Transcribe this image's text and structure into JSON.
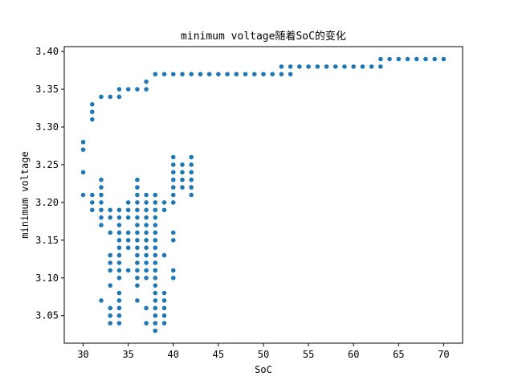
{
  "chart_data": {
    "type": "scatter",
    "title": "minimum voltage随着SoC的变化",
    "xlabel": "SoC",
    "ylabel": "minimum voltage",
    "xlim": [
      27.9,
      72.1
    ],
    "ylim": [
      3.0135,
      3.4065
    ],
    "xticks": [
      "30",
      "35",
      "40",
      "45",
      "50",
      "55",
      "60",
      "65",
      "70"
    ],
    "yticks": [
      "3.05",
      "3.10",
      "3.15",
      "3.20",
      "3.25",
      "3.30",
      "3.35",
      "3.40"
    ],
    "grid": false,
    "marker_color": "#1f77b4",
    "points": [
      [
        30,
        3.28
      ],
      [
        30,
        3.27
      ],
      [
        30,
        3.24
      ],
      [
        30,
        3.21
      ],
      [
        31,
        3.33
      ],
      [
        31,
        3.32
      ],
      [
        31,
        3.31
      ],
      [
        31,
        3.21
      ],
      [
        31,
        3.2
      ],
      [
        31,
        3.19
      ],
      [
        32,
        3.34
      ],
      [
        32,
        3.23
      ],
      [
        32,
        3.22
      ],
      [
        32,
        3.21
      ],
      [
        32,
        3.2
      ],
      [
        32,
        3.19
      ],
      [
        32,
        3.18
      ],
      [
        32,
        3.17
      ],
      [
        32,
        3.07
      ],
      [
        33,
        3.34
      ],
      [
        33,
        3.19
      ],
      [
        33,
        3.18
      ],
      [
        33,
        3.16
      ],
      [
        33,
        3.13
      ],
      [
        33,
        3.12
      ],
      [
        33,
        3.11
      ],
      [
        33,
        3.09
      ],
      [
        33,
        3.06
      ],
      [
        33,
        3.05
      ],
      [
        33,
        3.04
      ],
      [
        34,
        3.35
      ],
      [
        34,
        3.34
      ],
      [
        34,
        3.19
      ],
      [
        34,
        3.18
      ],
      [
        34,
        3.17
      ],
      [
        34,
        3.16
      ],
      [
        34,
        3.15
      ],
      [
        34,
        3.14
      ],
      [
        34,
        3.13
      ],
      [
        34,
        3.12
      ],
      [
        34,
        3.11
      ],
      [
        34,
        3.1
      ],
      [
        34,
        3.08
      ],
      [
        34,
        3.07
      ],
      [
        34,
        3.06
      ],
      [
        34,
        3.05
      ],
      [
        34,
        3.04
      ],
      [
        35,
        3.35
      ],
      [
        35,
        3.2
      ],
      [
        35,
        3.19
      ],
      [
        35,
        3.18
      ],
      [
        35,
        3.16
      ],
      [
        35,
        3.15
      ],
      [
        35,
        3.14
      ],
      [
        35,
        3.11
      ],
      [
        36,
        3.35
      ],
      [
        36,
        3.23
      ],
      [
        36,
        3.22
      ],
      [
        36,
        3.21
      ],
      [
        36,
        3.2
      ],
      [
        36,
        3.19
      ],
      [
        36,
        3.18
      ],
      [
        36,
        3.17
      ],
      [
        36,
        3.16
      ],
      [
        36,
        3.15
      ],
      [
        36,
        3.14
      ],
      [
        36,
        3.13
      ],
      [
        36,
        3.12
      ],
      [
        36,
        3.11
      ],
      [
        36,
        3.1
      ],
      [
        36,
        3.09
      ],
      [
        36,
        3.07
      ],
      [
        37,
        3.36
      ],
      [
        37,
        3.35
      ],
      [
        37,
        3.21
      ],
      [
        37,
        3.2
      ],
      [
        37,
        3.19
      ],
      [
        37,
        3.18
      ],
      [
        37,
        3.17
      ],
      [
        37,
        3.16
      ],
      [
        37,
        3.15
      ],
      [
        37,
        3.14
      ],
      [
        37,
        3.13
      ],
      [
        37,
        3.12
      ],
      [
        37,
        3.11
      ],
      [
        37,
        3.1
      ],
      [
        37,
        3.06
      ],
      [
        37,
        3.04
      ],
      [
        38,
        3.37
      ],
      [
        38,
        3.21
      ],
      [
        38,
        3.2
      ],
      [
        38,
        3.19
      ],
      [
        38,
        3.18
      ],
      [
        38,
        3.17
      ],
      [
        38,
        3.16
      ],
      [
        38,
        3.15
      ],
      [
        38,
        3.14
      ],
      [
        38,
        3.13
      ],
      [
        38,
        3.12
      ],
      [
        38,
        3.11
      ],
      [
        38,
        3.1
      ],
      [
        38,
        3.09
      ],
      [
        38,
        3.08
      ],
      [
        38,
        3.07
      ],
      [
        38,
        3.06
      ],
      [
        38,
        3.05
      ],
      [
        38,
        3.04
      ],
      [
        38,
        3.03
      ],
      [
        39,
        3.37
      ],
      [
        39,
        3.2
      ],
      [
        39,
        3.19
      ],
      [
        39,
        3.13
      ],
      [
        39,
        3.08
      ],
      [
        39,
        3.07
      ],
      [
        39,
        3.06
      ],
      [
        39,
        3.05
      ],
      [
        39,
        3.04
      ],
      [
        40,
        3.37
      ],
      [
        40,
        3.26
      ],
      [
        40,
        3.25
      ],
      [
        40,
        3.24
      ],
      [
        40,
        3.23
      ],
      [
        40,
        3.22
      ],
      [
        40,
        3.21
      ],
      [
        40,
        3.2
      ],
      [
        40,
        3.16
      ],
      [
        40,
        3.15
      ],
      [
        40,
        3.11
      ],
      [
        40,
        3.1
      ],
      [
        41,
        3.37
      ],
      [
        41,
        3.25
      ],
      [
        41,
        3.24
      ],
      [
        41,
        3.23
      ],
      [
        41,
        3.22
      ],
      [
        42,
        3.37
      ],
      [
        42,
        3.26
      ],
      [
        42,
        3.25
      ],
      [
        42,
        3.24
      ],
      [
        42,
        3.23
      ],
      [
        42,
        3.22
      ],
      [
        42,
        3.21
      ],
      [
        43,
        3.37
      ],
      [
        44,
        3.37
      ],
      [
        45,
        3.37
      ],
      [
        46,
        3.37
      ],
      [
        47,
        3.37
      ],
      [
        48,
        3.37
      ],
      [
        49,
        3.37
      ],
      [
        50,
        3.37
      ],
      [
        51,
        3.37
      ],
      [
        52,
        3.38
      ],
      [
        52,
        3.37
      ],
      [
        53,
        3.38
      ],
      [
        53,
        3.37
      ],
      [
        54,
        3.38
      ],
      [
        55,
        3.38
      ],
      [
        56,
        3.38
      ],
      [
        57,
        3.38
      ],
      [
        58,
        3.38
      ],
      [
        59,
        3.38
      ],
      [
        60,
        3.38
      ],
      [
        61,
        3.38
      ],
      [
        62,
        3.38
      ],
      [
        63,
        3.39
      ],
      [
        63,
        3.38
      ],
      [
        64,
        3.39
      ],
      [
        65,
        3.39
      ],
      [
        66,
        3.39
      ],
      [
        67,
        3.39
      ],
      [
        68,
        3.39
      ],
      [
        69,
        3.39
      ],
      [
        70,
        3.39
      ]
    ]
  }
}
